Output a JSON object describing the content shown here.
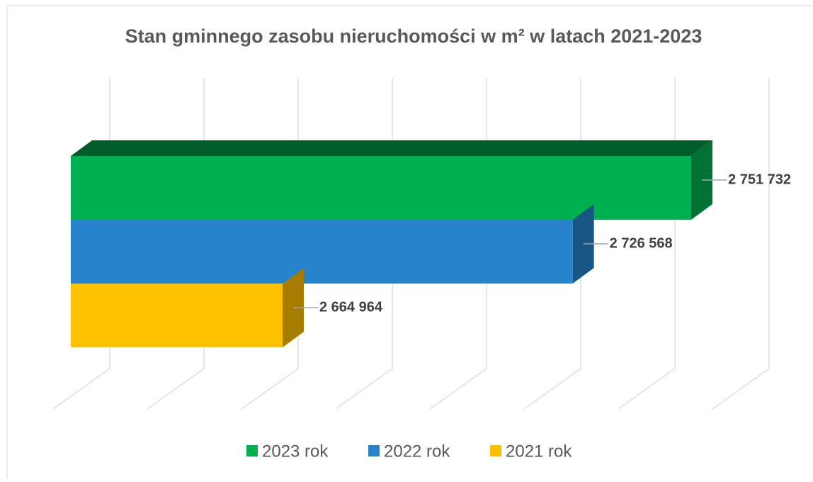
{
  "chart_data": {
    "type": "bar3d",
    "title": "Stan gminnego zasobu nieruchomości w m² w latach 2021-2023",
    "orientation": "horizontal",
    "series": [
      {
        "name": "2023 rok",
        "color": "#00b050",
        "values": [
          2751732
        ],
        "value_labels": [
          "2 751 732"
        ]
      },
      {
        "name": "2022 rok",
        "color": "#2783cc",
        "values": [
          2726568
        ],
        "value_labels": [
          "2 726 568"
        ]
      },
      {
        "name": "2021 rok",
        "color": "#ffc000",
        "values": [
          2664964
        ],
        "value_labels": [
          "2 664 964"
        ]
      }
    ],
    "xlim": [
      2620000,
      2760000
    ],
    "xticks": [
      2620000,
      2640000,
      2660000,
      2680000,
      2700000,
      2720000,
      2740000,
      2760000
    ],
    "grid": true,
    "legend": "bottom"
  }
}
